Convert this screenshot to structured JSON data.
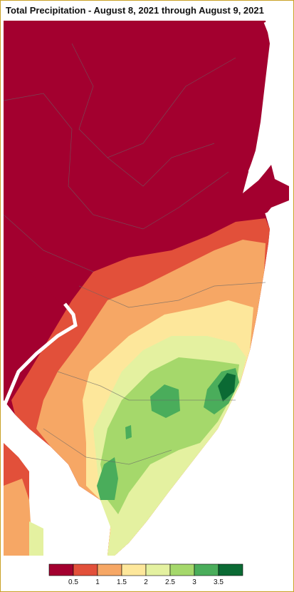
{
  "title": "Total Precipitation - August 8, 2021 through August 9, 2021",
  "legend": {
    "colors": [
      "#a3002f",
      "#e2503a",
      "#f6a765",
      "#fde79b",
      "#e4f1a0",
      "#a5d86b",
      "#4aad5b",
      "#0b6a34"
    ],
    "labels": [
      0.5,
      1,
      1.5,
      2,
      2.5,
      3,
      3.5
    ]
  }
}
